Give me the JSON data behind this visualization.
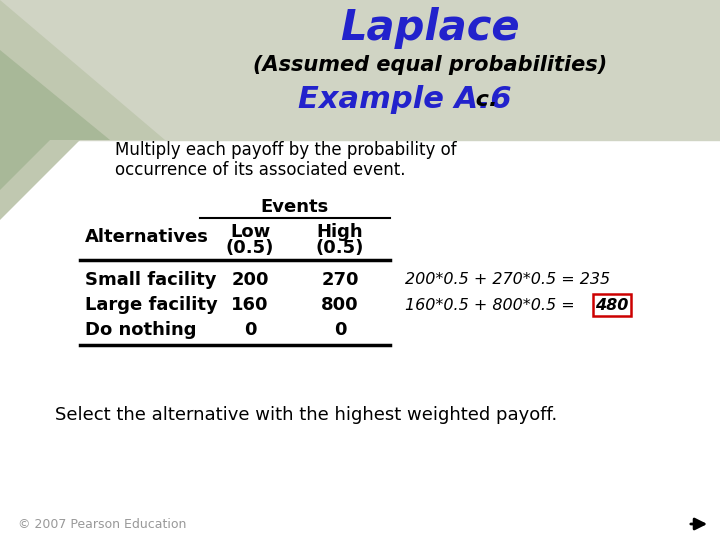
{
  "title1": "Laplace",
  "title2": "(Assumed equal probabilities)",
  "title3_main": "Example A.6",
  "title3_suffix": " c.",
  "header_bg": "#d0d4c4",
  "white_bg": "#ffffff",
  "title1_color": "#2222cc",
  "title3_color": "#2222cc",
  "title2_color": "#000000",
  "body_text_line1": "Multiply each payoff by the probability of",
  "body_text_line2": "occurrence of its associated event.",
  "events_label": "Events",
  "rows": [
    [
      "Small facility",
      "200",
      "270"
    ],
    [
      "Large facility",
      "160",
      "800"
    ],
    [
      "Do nothing",
      "0",
      "0"
    ]
  ],
  "calc1": "200*0.5 + 270*0.5 = 235",
  "calc2_prefix": "160*0.5 + 800*0.5 = ",
  "calc2_boxed": "480",
  "footer": "Select the alternative with the highest weighted payoff.",
  "copyright": "© 2007 Pearson Education",
  "box_color": "#cc0000",
  "tri1_color": "#c0c8b0",
  "tri2_color": "#a8b898",
  "tri3_color": "#98a888"
}
